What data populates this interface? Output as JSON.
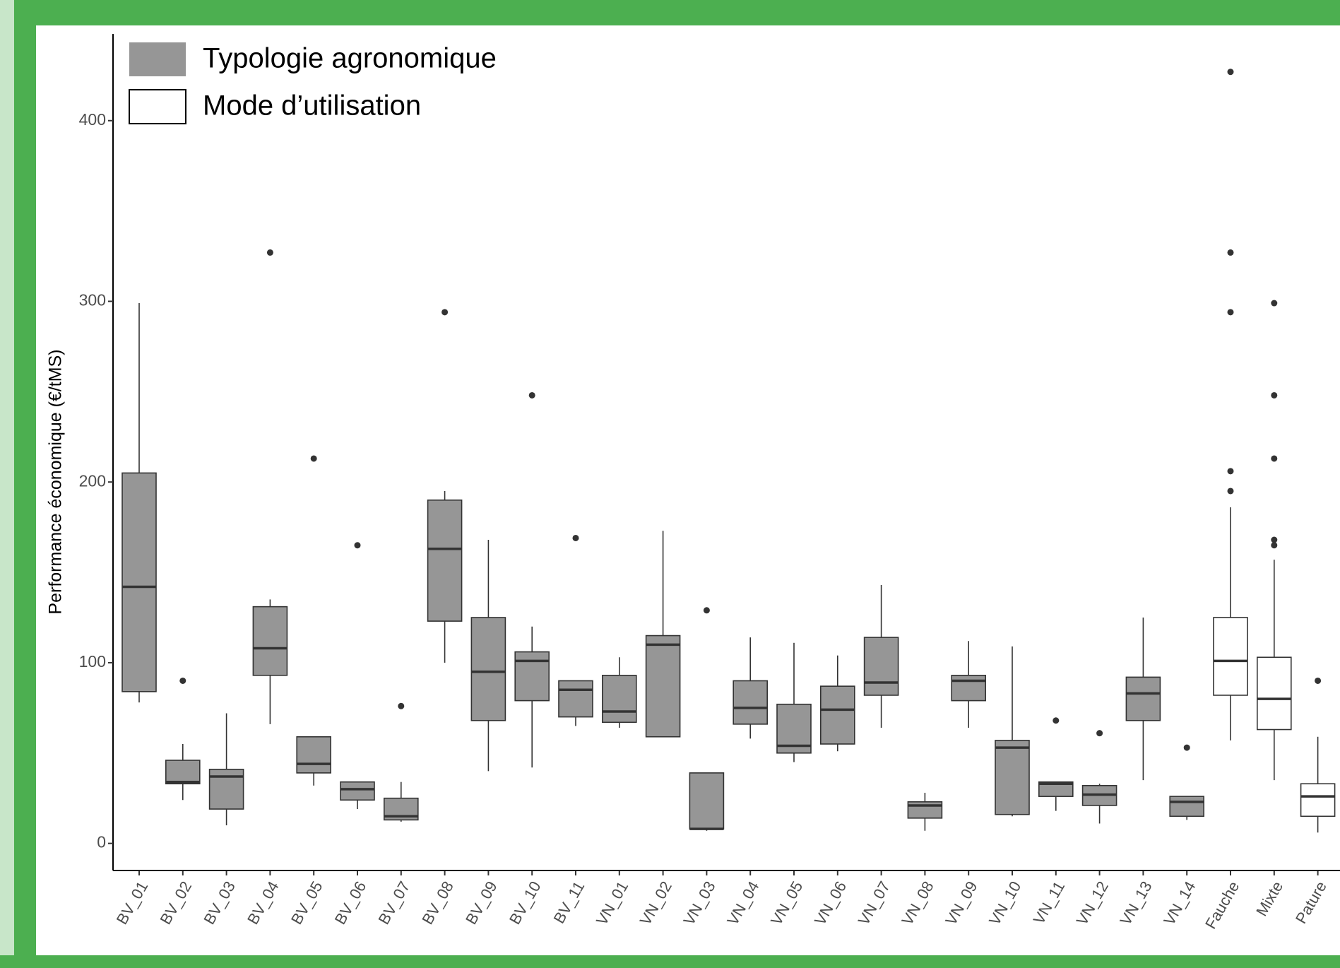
{
  "chart_data": {
    "type": "box",
    "ylabel": "Performance économique (€/tMS)",
    "ylim": [
      -15,
      448
    ],
    "yticks": [
      0,
      100,
      200,
      300,
      400
    ],
    "legend": "top-left",
    "series": [
      {
        "name": "Typologie agronomique",
        "color": "#969696",
        "categories": [
          "BV_01",
          "BV_02",
          "BV_03",
          "BV_04",
          "BV_05",
          "BV_06",
          "BV_07",
          "BV_08",
          "BV_09",
          "BV_10",
          "BV_11",
          "VN_01",
          "VN_02",
          "VN_03",
          "VN_04",
          "VN_05",
          "VN_06",
          "VN_07",
          "VN_08",
          "VN_09",
          "VN_10",
          "VN_11",
          "VN_12",
          "VN_13",
          "VN_14"
        ],
        "boxes": [
          {
            "low": 78,
            "q1": 84,
            "median": 142,
            "q3": 205,
            "high": 299,
            "outliers": []
          },
          {
            "low": 24,
            "q1": 33,
            "median": 34,
            "q3": 46,
            "high": 55,
            "outliers": [
              90
            ]
          },
          {
            "low": 10,
            "q1": 19,
            "median": 37,
            "q3": 41,
            "high": 72,
            "outliers": []
          },
          {
            "low": 66,
            "q1": 93,
            "median": 108,
            "q3": 131,
            "high": 135,
            "outliers": [
              327
            ]
          },
          {
            "low": 32,
            "q1": 39,
            "median": 44,
            "q3": 59,
            "high": 59,
            "outliers": [
              213
            ]
          },
          {
            "low": 19,
            "q1": 24,
            "median": 30,
            "q3": 34,
            "high": 34,
            "outliers": [
              165
            ]
          },
          {
            "low": 12,
            "q1": 13,
            "median": 15,
            "q3": 25,
            "high": 34,
            "outliers": [
              76
            ]
          },
          {
            "low": 100,
            "q1": 123,
            "median": 163,
            "q3": 190,
            "high": 195,
            "outliers": [
              294
            ]
          },
          {
            "low": 40,
            "q1": 68,
            "median": 95,
            "q3": 125,
            "high": 168,
            "outliers": []
          },
          {
            "low": 42,
            "q1": 79,
            "median": 101,
            "q3": 106,
            "high": 120,
            "outliers": [
              248
            ]
          },
          {
            "low": 65,
            "q1": 70,
            "median": 85,
            "q3": 90,
            "high": 90,
            "outliers": [
              169
            ]
          },
          {
            "low": 64,
            "q1": 67,
            "median": 73,
            "q3": 93,
            "high": 103,
            "outliers": []
          },
          {
            "low": 59,
            "q1": 59,
            "median": 110,
            "q3": 115,
            "high": 173,
            "outliers": []
          },
          {
            "low": 7,
            "q1": 8,
            "median": 8,
            "q3": 39,
            "high": 39,
            "outliers": [
              129
            ]
          },
          {
            "low": 58,
            "q1": 66,
            "median": 75,
            "q3": 90,
            "high": 114,
            "outliers": []
          },
          {
            "low": 45,
            "q1": 50,
            "median": 54,
            "q3": 77,
            "high": 111,
            "outliers": []
          },
          {
            "low": 51,
            "q1": 55,
            "median": 74,
            "q3": 87,
            "high": 104,
            "outliers": []
          },
          {
            "low": 64,
            "q1": 82,
            "median": 89,
            "q3": 114,
            "high": 143,
            "outliers": []
          },
          {
            "low": 7,
            "q1": 14,
            "median": 21,
            "q3": 23,
            "high": 28,
            "outliers": []
          },
          {
            "low": 64,
            "q1": 79,
            "median": 90,
            "q3": 93,
            "high": 112,
            "outliers": []
          },
          {
            "low": 15,
            "q1": 16,
            "median": 53,
            "q3": 57,
            "high": 109,
            "outliers": []
          },
          {
            "low": 18,
            "q1": 26,
            "median": 33,
            "q3": 34,
            "high": 34,
            "outliers": [
              68
            ]
          },
          {
            "low": 11,
            "q1": 21,
            "median": 27,
            "q3": 32,
            "high": 33,
            "outliers": [
              61
            ]
          },
          {
            "low": 35,
            "q1": 68,
            "median": 83,
            "q3": 92,
            "high": 125,
            "outliers": []
          },
          {
            "low": 13,
            "q1": 15,
            "median": 23,
            "q3": 26,
            "high": 26,
            "outliers": [
              53
            ]
          }
        ]
      },
      {
        "name": "Mode d’utilisation",
        "color": "#ffffff",
        "categories": [
          "Fauche",
          "Mixte",
          "Pature"
        ],
        "boxes": [
          {
            "low": 57,
            "q1": 82,
            "median": 101,
            "q3": 125,
            "high": 186,
            "outliers": [
              427,
              327,
              294,
              206,
              195
            ]
          },
          {
            "low": 35,
            "q1": 63,
            "median": 80,
            "q3": 103,
            "high": 157,
            "outliers": [
              299,
              248,
              213,
              168,
              165
            ]
          },
          {
            "low": 6,
            "q1": 15,
            "median": 26,
            "q3": 33,
            "high": 59,
            "outliers": [
              90
            ]
          }
        ]
      }
    ]
  }
}
